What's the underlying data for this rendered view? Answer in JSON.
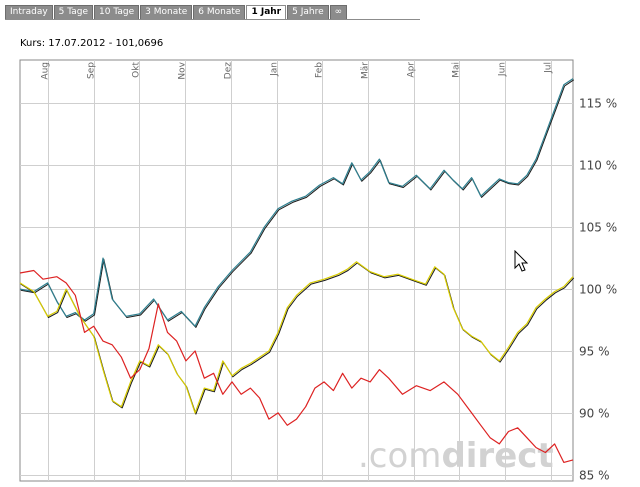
{
  "tabs": [
    {
      "label": "Intraday",
      "active": false
    },
    {
      "label": "5 Tage",
      "active": false
    },
    {
      "label": "10 Tage",
      "active": false
    },
    {
      "label": "3 Monate",
      "active": false
    },
    {
      "label": "6 Monate",
      "active": false
    },
    {
      "label": "1 Jahr",
      "active": true
    },
    {
      "label": "5 Jahre",
      "active": false
    },
    {
      "label": "∞",
      "active": false
    }
  ],
  "price_label": "Kurs: 17.07.2012 - 101,0696",
  "watermark": {
    "part1": ".com",
    "part2": "direct"
  },
  "colors": {
    "grid": "#cfcfcf",
    "axis": "#888888",
    "teal": "#2e7f8f",
    "yellow": "#d8cc00",
    "red": "#dd2222",
    "watermark": "#d2d2d2",
    "tab": "#8c8c8c"
  },
  "chart_data": {
    "type": "line",
    "title": "",
    "xlabel": "",
    "ylabel": "",
    "x_ticks": [
      "Aug",
      "Sep",
      "Okt",
      "Nov",
      "Dez",
      "Jan",
      "Feb",
      "Mär",
      "Apr",
      "Mai",
      "Jun",
      "Jul"
    ],
    "y_ticks": [
      "85 %",
      "90 %",
      "95 %",
      "100 %",
      "105 %",
      "110 %",
      "115 %"
    ],
    "ylim": [
      84.5,
      118.5
    ],
    "xlim": [
      0,
      12
    ],
    "grid": true,
    "series": [
      {
        "color": "teal",
        "x": [
          0,
          0.3,
          0.6,
          0.8,
          1.0,
          1.2,
          1.4,
          1.6,
          1.8,
          2.0,
          2.3,
          2.6,
          2.9,
          3.2,
          3.5,
          3.8,
          4.0,
          4.3,
          4.6,
          5.0,
          5.3,
          5.6,
          5.9,
          6.2,
          6.5,
          6.8,
          7.0,
          7.2,
          7.4,
          7.6,
          7.8,
          8.0,
          8.3,
          8.6,
          8.9,
          9.0,
          9.2,
          9.4,
          9.6,
          9.8,
          10.0,
          10.2,
          10.4,
          10.6,
          10.8,
          11.0,
          11.2,
          11.4,
          11.6,
          11.8,
          12.0
        ],
        "y": [
          100.0,
          99.8,
          100.5,
          99.0,
          97.8,
          98.1,
          97.5,
          98.0,
          102.5,
          99.2,
          97.8,
          98.0,
          99.2,
          97.5,
          98.2,
          97.0,
          98.5,
          100.2,
          101.5,
          103.0,
          105.0,
          106.5,
          107.1,
          107.5,
          108.4,
          109.0,
          108.5,
          110.2,
          108.8,
          109.5,
          110.5,
          108.6,
          108.3,
          109.2,
          108.1,
          108.6,
          109.6,
          108.8,
          108.1,
          109.0,
          107.5,
          108.2,
          108.9,
          108.6,
          108.5,
          109.2,
          110.5,
          112.5,
          114.5,
          116.5,
          117.0
        ]
      },
      {
        "color": "yellow",
        "x": [
          0,
          0.3,
          0.6,
          0.8,
          1.0,
          1.3,
          1.6,
          1.8,
          2.0,
          2.2,
          2.4,
          2.6,
          2.8,
          3.0,
          3.2,
          3.4,
          3.6,
          3.8,
          4.0,
          4.2,
          4.4,
          4.6,
          4.8,
          5.0,
          5.2,
          5.4,
          5.6,
          5.8,
          6.0,
          6.3,
          6.6,
          6.9,
          7.1,
          7.3,
          7.6,
          7.9,
          8.2,
          8.5,
          8.8,
          9.0,
          9.2,
          9.4,
          9.6,
          9.8,
          10.0,
          10.2,
          10.4,
          10.6,
          10.8,
          11.0,
          11.2,
          11.4,
          11.6,
          11.8,
          12.0
        ],
        "y": [
          100.5,
          99.8,
          97.8,
          98.2,
          100.0,
          97.8,
          96.2,
          93.5,
          91.0,
          90.5,
          92.5,
          94.2,
          93.8,
          95.5,
          94.8,
          93.2,
          92.2,
          90.0,
          92.0,
          91.8,
          94.2,
          93.0,
          93.6,
          94.0,
          94.5,
          95.0,
          96.5,
          98.5,
          99.5,
          100.5,
          100.8,
          101.2,
          101.6,
          102.2,
          101.4,
          101.0,
          101.2,
          100.8,
          100.4,
          101.8,
          101.2,
          98.5,
          96.8,
          96.2,
          95.8,
          94.8,
          94.2,
          95.3,
          96.5,
          97.2,
          98.5,
          99.2,
          99.8,
          100.2,
          101.0
        ]
      },
      {
        "color": "red",
        "x": [
          0,
          0.3,
          0.5,
          0.8,
          1.0,
          1.2,
          1.4,
          1.6,
          1.8,
          2.0,
          2.2,
          2.4,
          2.6,
          2.8,
          3.0,
          3.2,
          3.4,
          3.6,
          3.8,
          4.0,
          4.2,
          4.4,
          4.6,
          4.8,
          5.0,
          5.2,
          5.4,
          5.6,
          5.8,
          6.0,
          6.2,
          6.4,
          6.6,
          6.8,
          7.0,
          7.2,
          7.4,
          7.6,
          7.8,
          8.0,
          8.3,
          8.6,
          8.9,
          9.2,
          9.5,
          9.8,
          10.0,
          10.2,
          10.4,
          10.6,
          10.8,
          11.0,
          11.2,
          11.4,
          11.6,
          11.8,
          12.0
        ],
        "y": [
          101.3,
          101.5,
          100.8,
          101.0,
          100.5,
          99.5,
          96.5,
          97.0,
          95.8,
          95.5,
          94.5,
          92.8,
          93.5,
          95.2,
          98.8,
          96.5,
          95.8,
          94.2,
          95.0,
          92.8,
          93.2,
          91.5,
          92.5,
          91.5,
          92.0,
          91.2,
          89.5,
          90.0,
          89.0,
          89.5,
          90.5,
          92.0,
          92.5,
          91.8,
          93.2,
          92.0,
          92.8,
          92.5,
          93.5,
          92.8,
          91.5,
          92.2,
          91.8,
          92.5,
          91.5,
          90.0,
          89.0,
          88.0,
          87.5,
          88.5,
          88.8,
          88.0,
          87.2,
          86.8,
          87.5,
          86.0,
          86.2
        ]
      }
    ]
  }
}
